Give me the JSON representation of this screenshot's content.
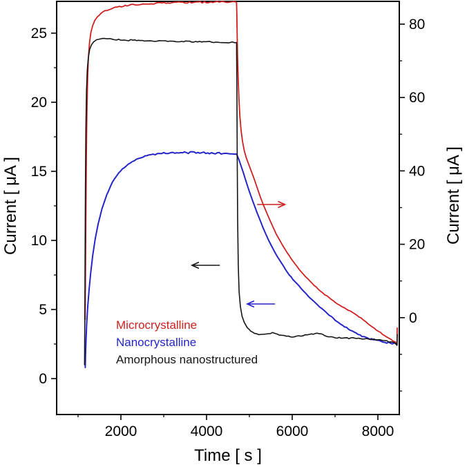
{
  "figure": {
    "background": "#ffffff"
  },
  "chart_data": {
    "type": "line",
    "title": "",
    "xlabel": "Time [ s ]",
    "ylabel_left": "Current [ μA ]",
    "ylabel_right": "Current [ μA ]",
    "x_range": [
      500,
      8500
    ],
    "x_ticks": [
      2000,
      4000,
      6000,
      8000
    ],
    "x_minor_ticks": [
      1000,
      3000,
      5000,
      7000
    ],
    "y_left_range": [
      -2.6,
      27.3
    ],
    "y_left_ticks": [
      0,
      5,
      10,
      15,
      20,
      25
    ],
    "y_left_minor_ticks": [
      2.5,
      7.5,
      12.5,
      17.5,
      22.5
    ],
    "y_right_range": [
      -26.4,
      86.2
    ],
    "y_right_ticks": [
      0,
      20,
      40,
      60,
      80
    ],
    "y_right_minor_ticks": [
      -20,
      -10,
      10,
      30,
      50,
      70
    ],
    "frame_color": "#000000",
    "series": [
      {
        "name": "Microcrystalline",
        "color": "#cf2020",
        "axis": "right",
        "points": [
          [
            1165,
            -0.5
          ],
          [
            1170,
            6
          ],
          [
            1176,
            16
          ],
          [
            1184,
            30
          ],
          [
            1194,
            44
          ],
          [
            1206,
            56
          ],
          [
            1222,
            65
          ],
          [
            1242,
            71
          ],
          [
            1268,
            75
          ],
          [
            1300,
            77.8
          ],
          [
            1340,
            79.6
          ],
          [
            1390,
            81.0
          ],
          [
            1450,
            82.0
          ],
          [
            1530,
            82.9
          ],
          [
            1630,
            83.6
          ],
          [
            1760,
            84.2
          ],
          [
            1920,
            84.7
          ],
          [
            2100,
            85.0
          ],
          [
            2320,
            85.3
          ],
          [
            2560,
            85.5
          ],
          [
            2820,
            85.7
          ],
          [
            3100,
            85.8
          ],
          [
            3400,
            85.9
          ],
          [
            3700,
            85.95
          ],
          [
            4000,
            86.0
          ],
          [
            4300,
            86.0
          ],
          [
            4550,
            86.0
          ],
          [
            4700,
            86.0
          ],
          [
            4706,
            83
          ],
          [
            4714,
            77
          ],
          [
            4724,
            71
          ],
          [
            4738,
            65
          ],
          [
            4756,
            59.5
          ],
          [
            4778,
            55
          ],
          [
            4806,
            51
          ],
          [
            4840,
            48
          ],
          [
            4880,
            45.5
          ],
          [
            4930,
            43.5
          ],
          [
            5000,
            41.3
          ],
          [
            5080,
            38.8
          ],
          [
            5170,
            35.8
          ],
          [
            5270,
            32.5
          ],
          [
            5380,
            29.2
          ],
          [
            5500,
            26.0
          ],
          [
            5620,
            23.0
          ],
          [
            5750,
            20.2
          ],
          [
            5880,
            17.7
          ],
          [
            6010,
            15.5
          ],
          [
            6160,
            13.2
          ],
          [
            6310,
            11.2
          ],
          [
            6460,
            9.4
          ],
          [
            6610,
            7.8
          ],
          [
            6760,
            6.3
          ],
          [
            6910,
            5.0
          ],
          [
            7060,
            3.8
          ],
          [
            7210,
            2.7
          ],
          [
            7360,
            1.7
          ],
          [
            7510,
            0.7
          ],
          [
            7660,
            -0.6
          ],
          [
            7810,
            -2.0
          ],
          [
            7960,
            -3.3
          ],
          [
            8110,
            -4.5
          ],
          [
            8250,
            -5.5
          ],
          [
            8350,
            -6.2
          ],
          [
            8420,
            -6.6
          ],
          [
            8442,
            -6.8
          ],
          [
            8448,
            -6.9
          ],
          [
            8452,
            -2.8
          ]
        ]
      },
      {
        "name": "Nanocrystalline",
        "color": "#2424c8",
        "axis": "left",
        "points": [
          [
            1168,
            0.8
          ],
          [
            1176,
            1.9
          ],
          [
            1188,
            3.0
          ],
          [
            1204,
            4.1
          ],
          [
            1226,
            5.2
          ],
          [
            1256,
            6.4
          ],
          [
            1294,
            7.6
          ],
          [
            1342,
            8.9
          ],
          [
            1400,
            10.1
          ],
          [
            1470,
            11.2
          ],
          [
            1560,
            12.3
          ],
          [
            1670,
            13.3
          ],
          [
            1800,
            14.2
          ],
          [
            1950,
            14.9
          ],
          [
            2120,
            15.4
          ],
          [
            2310,
            15.8
          ],
          [
            2520,
            16.05
          ],
          [
            2750,
            16.2
          ],
          [
            3000,
            16.3
          ],
          [
            3260,
            16.35
          ],
          [
            3530,
            16.35
          ],
          [
            3800,
            16.35
          ],
          [
            4070,
            16.3
          ],
          [
            4340,
            16.3
          ],
          [
            4600,
            16.3
          ],
          [
            4700,
            16.25
          ],
          [
            4760,
            15.8
          ],
          [
            4850,
            15.0
          ],
          [
            4950,
            14.0
          ],
          [
            5060,
            13.0
          ],
          [
            5180,
            12.0
          ],
          [
            5310,
            11.0
          ],
          [
            5450,
            10.0
          ],
          [
            5600,
            9.1
          ],
          [
            5760,
            8.3
          ],
          [
            5930,
            7.5
          ],
          [
            6100,
            6.9
          ],
          [
            6280,
            6.3
          ],
          [
            6460,
            5.7
          ],
          [
            6640,
            5.2
          ],
          [
            6820,
            4.7
          ],
          [
            7000,
            4.25
          ],
          [
            7180,
            3.85
          ],
          [
            7360,
            3.5
          ],
          [
            7540,
            3.2
          ],
          [
            7720,
            2.95
          ],
          [
            7900,
            2.8
          ],
          [
            8080,
            2.68
          ],
          [
            8250,
            2.6
          ],
          [
            8380,
            2.55
          ],
          [
            8450,
            2.5
          ]
        ]
      },
      {
        "name": "Amorphous nanostructured",
        "color": "#141414",
        "axis": "left",
        "points": [
          [
            1152,
            1.0
          ],
          [
            1158,
            4.5
          ],
          [
            1164,
            9
          ],
          [
            1172,
            14
          ],
          [
            1182,
            18
          ],
          [
            1196,
            20.8
          ],
          [
            1214,
            22.3
          ],
          [
            1238,
            23.2
          ],
          [
            1270,
            23.8
          ],
          [
            1310,
            24.15
          ],
          [
            1360,
            24.35
          ],
          [
            1430,
            24.5
          ],
          [
            1520,
            24.58
          ],
          [
            1620,
            24.6
          ],
          [
            1750,
            24.57
          ],
          [
            1900,
            24.53
          ],
          [
            2080,
            24.5
          ],
          [
            2280,
            24.5
          ],
          [
            2500,
            24.47
          ],
          [
            2740,
            24.45
          ],
          [
            3000,
            24.43
          ],
          [
            3280,
            24.42
          ],
          [
            3560,
            24.4
          ],
          [
            3840,
            24.38
          ],
          [
            4120,
            24.36
          ],
          [
            4400,
            24.35
          ],
          [
            4600,
            24.33
          ],
          [
            4700,
            24.32
          ],
          [
            4708,
            21
          ],
          [
            4716,
            16
          ],
          [
            4726,
            11.5
          ],
          [
            4740,
            8.2
          ],
          [
            4760,
            6.3
          ],
          [
            4790,
            5.2
          ],
          [
            4830,
            4.5
          ],
          [
            4880,
            4.05
          ],
          [
            4950,
            3.7
          ],
          [
            5030,
            3.45
          ],
          [
            5120,
            3.3
          ],
          [
            5220,
            3.2
          ],
          [
            5330,
            3.17
          ],
          [
            5440,
            3.22
          ],
          [
            5540,
            3.3
          ],
          [
            5640,
            3.22
          ],
          [
            5750,
            3.12
          ],
          [
            5870,
            3.06
          ],
          [
            6000,
            3.04
          ],
          [
            6150,
            3.08
          ],
          [
            6300,
            3.14
          ],
          [
            6450,
            3.22
          ],
          [
            6580,
            3.28
          ],
          [
            6700,
            3.2
          ],
          [
            6820,
            3.05
          ],
          [
            6950,
            2.97
          ],
          [
            7100,
            2.95
          ],
          [
            7280,
            2.92
          ],
          [
            7460,
            2.92
          ],
          [
            7640,
            2.9
          ],
          [
            7820,
            2.86
          ],
          [
            8000,
            2.8
          ],
          [
            8160,
            2.74
          ],
          [
            8300,
            2.66
          ],
          [
            8400,
            2.56
          ],
          [
            8432,
            2.44
          ],
          [
            8446,
            2.4
          ],
          [
            8452,
            3.2
          ]
        ]
      }
    ],
    "annotations": [
      {
        "type": "arrow",
        "color": "#cf2020",
        "x1": 5180,
        "x2": 5830,
        "y": 12.6,
        "axis": "left",
        "head": "right"
      },
      {
        "type": "arrow",
        "color": "#141414",
        "x1": 3660,
        "x2": 4310,
        "y": 8.2,
        "axis": "left",
        "head": "left"
      },
      {
        "type": "arrow",
        "color": "#2424c8",
        "x1": 4950,
        "x2": 5600,
        "y": 5.4,
        "axis": "left",
        "head": "left"
      }
    ],
    "legend_position": "inside-bottom-left"
  }
}
